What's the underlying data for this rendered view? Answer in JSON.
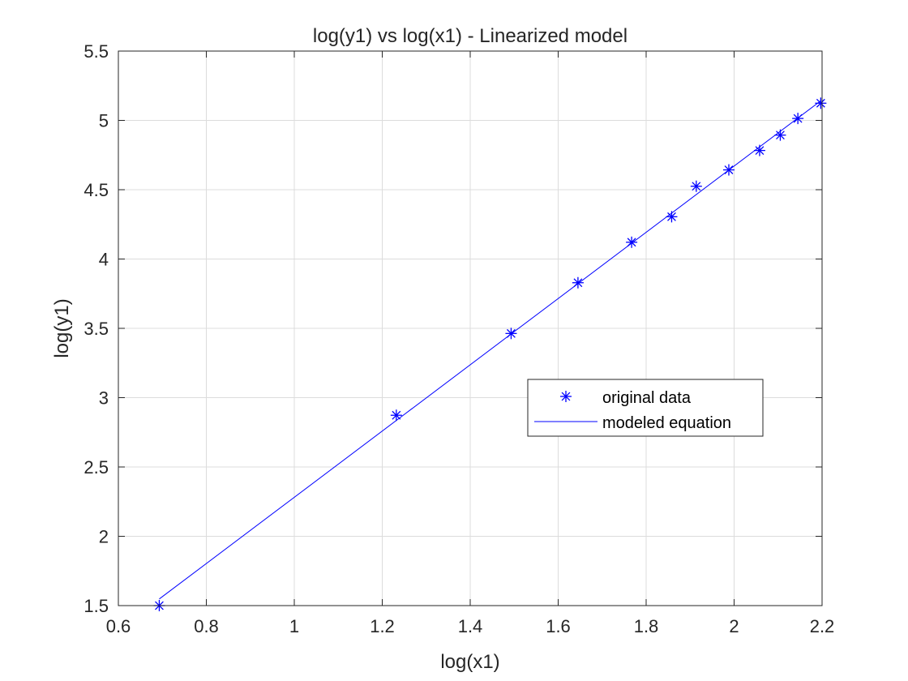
{
  "chart_data": {
    "type": "scatter",
    "title": "log(y1) vs log(x1) - Linearized model",
    "xlabel": "log(x1)",
    "ylabel": "log(y1)",
    "xlim": [
      0.6,
      2.2
    ],
    "ylim": [
      1.5,
      5.5
    ],
    "x_ticks": [
      0.6,
      0.8,
      1,
      1.2,
      1.4,
      1.6,
      1.8,
      2,
      2.2
    ],
    "y_ticks": [
      1.5,
      2,
      2.5,
      3,
      3.5,
      4,
      4.5,
      5,
      5.5
    ],
    "x_tick_labels": [
      "0.6",
      "0.8",
      "1",
      "1.2",
      "1.4",
      "1.6",
      "1.8",
      "2",
      "2.2"
    ],
    "y_tick_labels": [
      "1.5",
      "2",
      "2.5",
      "3",
      "3.5",
      "4",
      "4.5",
      "5",
      "5.5"
    ],
    "grid": true,
    "legend_position": "center-right",
    "series": [
      {
        "name": "original data",
        "kind": "marker",
        "marker": "asterisk",
        "color": "#0000ff",
        "x": [
          0.693,
          1.232,
          1.493,
          1.645,
          1.767,
          1.858,
          1.914,
          1.988,
          2.058,
          2.105,
          2.145,
          2.197
        ],
        "y": [
          1.5,
          2.873,
          3.463,
          3.829,
          4.121,
          4.305,
          4.525,
          4.643,
          4.783,
          4.894,
          5.014,
          5.124
        ]
      },
      {
        "name": "modeled equation",
        "kind": "line",
        "color": "#0000ff",
        "x": [
          0.693,
          2.197
        ],
        "y": [
          1.548,
          5.141
        ]
      }
    ]
  }
}
